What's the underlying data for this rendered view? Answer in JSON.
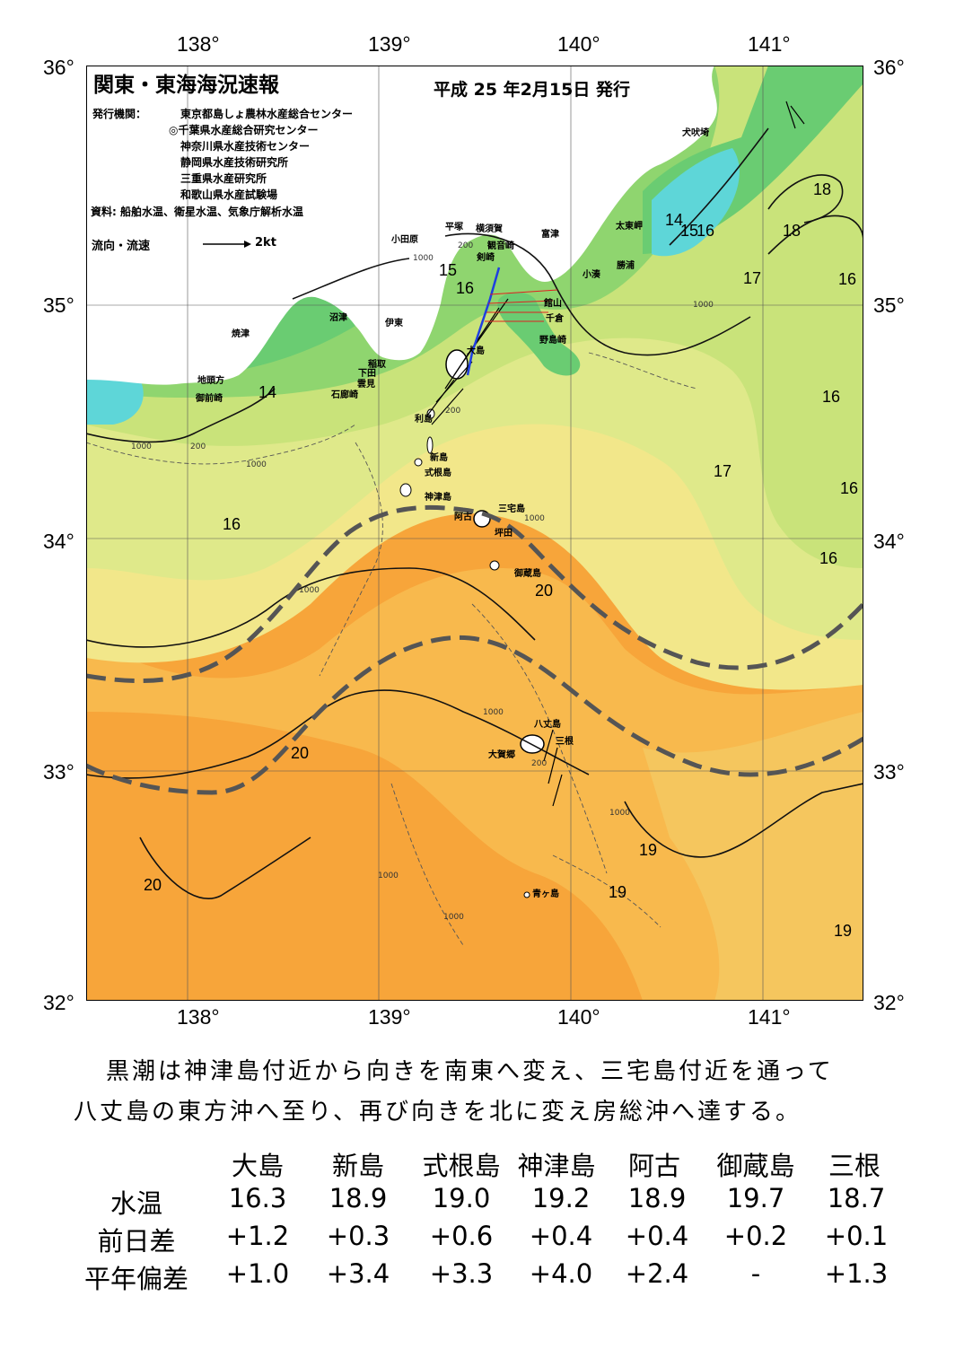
{
  "map": {
    "title": "関東・東海海況速報",
    "date": "平成 25 年2月15日 発行",
    "issuer_label": "発行機関：",
    "issuers": [
      "東京都島しょ農林水産総合センター",
      "◎千葉県水産総合研究センター",
      "神奈川県水産技術センター",
      "静岡県水産技術研究所",
      "三重県水産研究所",
      "和歌山県水産試験場"
    ],
    "source": "資料: 船舶水温、衛星水温、気象庁解析水温",
    "flow_label": "流向・流速",
    "flow_scale": "2kt",
    "lon_labels": [
      "138°",
      "139°",
      "140°",
      "141°"
    ],
    "lat_labels": [
      "36°",
      "35°",
      "34°",
      "33°",
      "32°"
    ],
    "places": [
      "犬吠埼",
      "太東岬",
      "勝浦",
      "小湊",
      "館山",
      "千倉",
      "野島崎",
      "富津",
      "観音崎",
      "剣崎",
      "横須賀",
      "平塚",
      "小田原",
      "沼津",
      "伊東",
      "稲取",
      "下田",
      "雲見",
      "石廊崎",
      "焼津",
      "地頭方",
      "御前崎",
      "大島",
      "利島",
      "新島",
      "式根島",
      "神津島",
      "三宅島",
      "阿古",
      "坪田",
      "御蔵島",
      "八丈島",
      "三根",
      "大賀郷",
      "青ヶ島"
    ],
    "isotherms": [
      "14",
      "15",
      "16",
      "17",
      "18",
      "19",
      "20"
    ],
    "isobaths": [
      "200",
      "1000"
    ]
  },
  "summary": [
    "黒潮は神津島付近から向きを南東へ変え、三宅島付近を通って",
    "八丈島の東方沖へ至り、再び向きを北に変え房総沖へ達する。"
  ],
  "table": {
    "columns": [
      "大島",
      "新島",
      "式根島",
      "神津島",
      "阿古",
      "御蔵島",
      "三根"
    ],
    "rows": [
      {
        "label": "水温",
        "values": [
          "16.3",
          "18.9",
          "19.0",
          "19.2",
          "18.9",
          "19.7",
          "18.7"
        ]
      },
      {
        "label": "前日差",
        "values": [
          "+1.2",
          "+0.3",
          "+0.6",
          "+0.4",
          "+0.4",
          "+0.2",
          "+0.1"
        ]
      },
      {
        "label": "平年偏差",
        "values": [
          "+1.0",
          "+3.4",
          "+3.3",
          "+4.0",
          "+2.4",
          "-",
          "+1.3"
        ]
      }
    ]
  }
}
